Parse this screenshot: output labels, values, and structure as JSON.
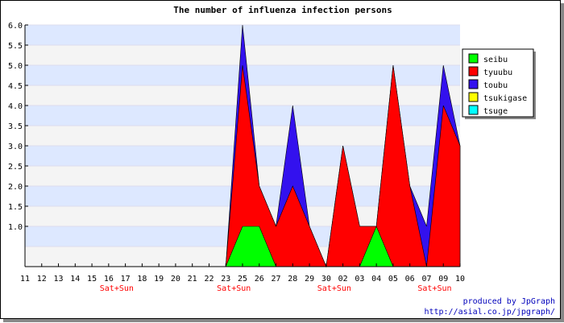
{
  "chart_data": {
    "type": "area",
    "stacked": true,
    "title": "The number of influenza infection persons",
    "xlabel": "",
    "ylabel": "",
    "ylim": [
      0,
      6
    ],
    "y_ticks": [
      "6.0",
      "5.5",
      "5.0",
      "4.5",
      "4.0",
      "3.5",
      "3.0",
      "2.5",
      "2.0",
      "1.5",
      "1.0"
    ],
    "categories": [
      "11",
      "12",
      "13",
      "14",
      "15",
      "16",
      "17",
      "18",
      "19",
      "20",
      "21",
      "22",
      "23",
      "25",
      "26",
      "27",
      "28",
      "29",
      "30",
      "02",
      "03",
      "04",
      "05",
      "06",
      "07",
      "09",
      "10"
    ],
    "weekend_markers": [
      {
        "category": "16",
        "label": "Sat+Sun"
      },
      {
        "category": "23",
        "label": "Sat+Sun"
      },
      {
        "category": "30",
        "label": "Sat+Sun"
      },
      {
        "category": "07",
        "label": "Sat+Sun"
      }
    ],
    "series": [
      {
        "name": "seibu",
        "color": "#00ff00",
        "values": [
          0,
          0,
          0,
          0,
          0,
          0,
          0,
          0,
          0,
          0,
          0,
          0,
          0,
          1,
          1,
          0,
          0,
          0,
          0,
          0,
          0,
          1,
          0,
          0,
          0,
          0,
          0
        ]
      },
      {
        "name": "tyuubu",
        "color": "#ff0000",
        "values": [
          0,
          0,
          0,
          0,
          0,
          0,
          0,
          0,
          0,
          0,
          0,
          0,
          0,
          4,
          1,
          1,
          2,
          1,
          0,
          3,
          1,
          0,
          5,
          2,
          0,
          4,
          3
        ]
      },
      {
        "name": "toubu",
        "color": "#3311ee",
        "values": [
          0,
          0,
          0,
          0,
          0,
          0,
          0,
          0,
          0,
          0,
          0,
          0,
          0,
          1,
          0,
          0,
          2,
          0,
          0,
          0,
          0,
          0,
          0,
          0,
          1,
          1,
          0
        ]
      },
      {
        "name": "tsukigase",
        "color": "#ffff00",
        "values": [
          0,
          0,
          0,
          0,
          0,
          0,
          0,
          0,
          0,
          0,
          0,
          0,
          0,
          0,
          0,
          0,
          0,
          0,
          0,
          0,
          0,
          0,
          0,
          0,
          0,
          0,
          0
        ]
      },
      {
        "name": "tsuge",
        "color": "#00ffff",
        "values": [
          0,
          0,
          0,
          0,
          0,
          0,
          0,
          0,
          0,
          0,
          0,
          0,
          0,
          0,
          0,
          0,
          0,
          0,
          0,
          0,
          0,
          0,
          0,
          0,
          0,
          0,
          0
        ]
      }
    ],
    "grid": true,
    "legend_position": "right",
    "background_bands": [
      "#dde8ff",
      "#f4f4f4"
    ]
  },
  "credits": {
    "line1": "produced by JpGraph",
    "line2": "http://asial.co.jp/jpgraph/"
  }
}
